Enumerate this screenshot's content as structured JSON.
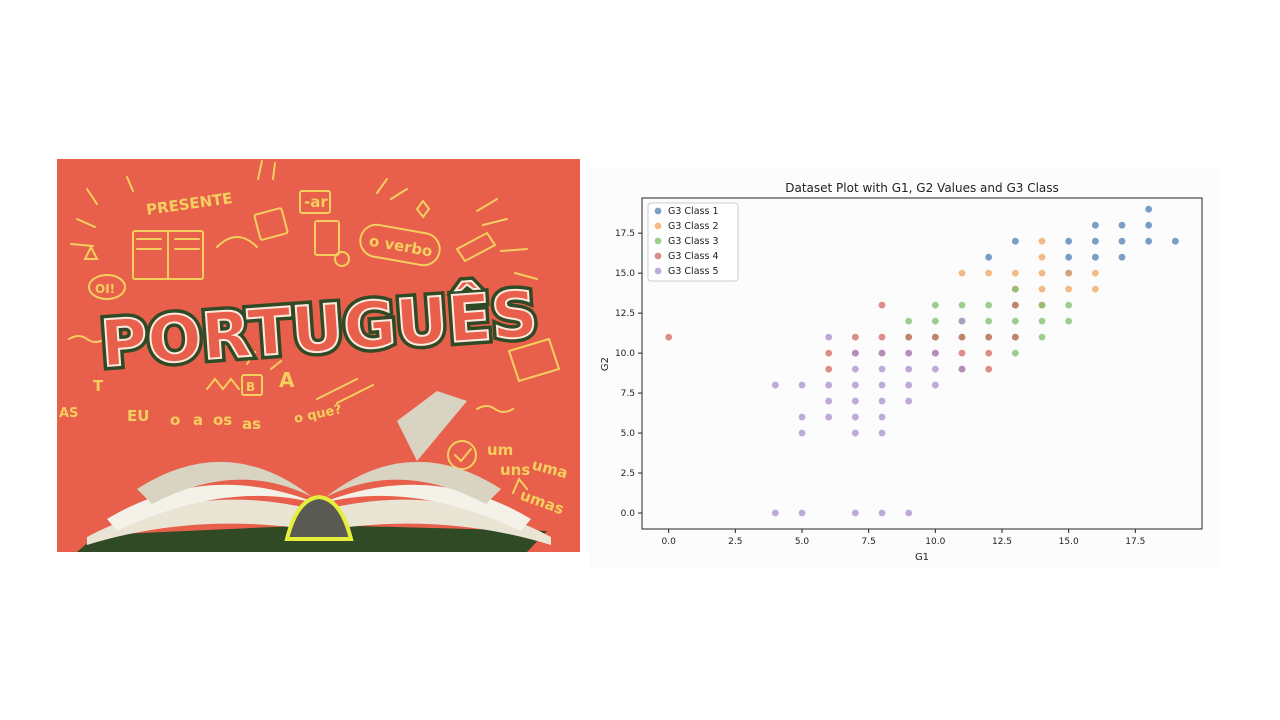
{
  "illustration": {
    "title_word": "PORTUGUÊS",
    "doodle_words": [
      "PRESENTE",
      "-ar",
      "o verbo",
      "OI!",
      "EU",
      "o",
      "a",
      "os",
      "as",
      "o que?",
      "um",
      "uns",
      "uma",
      "umas",
      "AS",
      "T",
      "B",
      "A"
    ],
    "colors": {
      "background": "#e8604c",
      "doodle": "#f4cf5e",
      "outline": "#2f4a24"
    }
  },
  "chart_data": {
    "type": "scatter",
    "title": "Dataset Plot with G1, G2 Values and G3 Class",
    "xlabel": "G1",
    "ylabel": "G2",
    "xlim": [
      -1,
      20
    ],
    "ylim": [
      -1,
      19.7
    ],
    "xticks": [
      0.0,
      2.5,
      5.0,
      7.5,
      10.0,
      12.5,
      15.0,
      17.5
    ],
    "yticks": [
      0.0,
      2.5,
      5.0,
      7.5,
      10.0,
      12.5,
      15.0,
      17.5
    ],
    "xtick_labels": [
      "0.0",
      "2.5",
      "5.0",
      "7.5",
      "10.0",
      "12.5",
      "15.0",
      "17.5"
    ],
    "ytick_labels": [
      "0.0",
      "2.5",
      "5.0",
      "7.5",
      "10.0",
      "12.5",
      "15.0",
      "17.5"
    ],
    "grid": false,
    "legend_position": "top-left",
    "series": [
      {
        "name": "G3 Class 1",
        "color": "#4f7fb1",
        "points": [
          [
            12,
            16
          ],
          [
            13,
            17
          ],
          [
            15,
            15
          ],
          [
            15,
            16
          ],
          [
            15,
            17
          ],
          [
            16,
            16
          ],
          [
            16,
            17
          ],
          [
            16,
            18
          ],
          [
            17,
            16
          ],
          [
            17,
            17
          ],
          [
            17,
            18
          ],
          [
            18,
            17
          ],
          [
            18,
            18
          ],
          [
            18,
            19
          ],
          [
            19,
            17
          ]
        ]
      },
      {
        "name": "G3 Class 2",
        "color": "#f2a35c",
        "points": [
          [
            11,
            15
          ],
          [
            12,
            15
          ],
          [
            13,
            14
          ],
          [
            13,
            15
          ],
          [
            14,
            13
          ],
          [
            14,
            14
          ],
          [
            14,
            15
          ],
          [
            14,
            16
          ],
          [
            14,
            17
          ],
          [
            15,
            14
          ],
          [
            15,
            15
          ],
          [
            16,
            14
          ],
          [
            16,
            15
          ]
        ]
      },
      {
        "name": "G3 Class 3",
        "color": "#7ebd6a",
        "points": [
          [
            9,
            11
          ],
          [
            9,
            12
          ],
          [
            10,
            11
          ],
          [
            10,
            12
          ],
          [
            10,
            13
          ],
          [
            11,
            11
          ],
          [
            11,
            12
          ],
          [
            11,
            13
          ],
          [
            12,
            11
          ],
          [
            12,
            12
          ],
          [
            12,
            13
          ],
          [
            13,
            10
          ],
          [
            13,
            11
          ],
          [
            13,
            12
          ],
          [
            13,
            13
          ],
          [
            13,
            14
          ],
          [
            14,
            11
          ],
          [
            14,
            12
          ],
          [
            14,
            13
          ],
          [
            15,
            12
          ],
          [
            15,
            13
          ]
        ]
      },
      {
        "name": "G3 Class 4",
        "color": "#cf6860",
        "points": [
          [
            0,
            11
          ],
          [
            6,
            9
          ],
          [
            6,
            10
          ],
          [
            7,
            10
          ],
          [
            7,
            11
          ],
          [
            8,
            10
          ],
          [
            8,
            11
          ],
          [
            8,
            13
          ],
          [
            9,
            10
          ],
          [
            9,
            11
          ],
          [
            10,
            10
          ],
          [
            10,
            11
          ],
          [
            11,
            9
          ],
          [
            11,
            10
          ],
          [
            11,
            11
          ],
          [
            12,
            9
          ],
          [
            12,
            10
          ],
          [
            12,
            11
          ],
          [
            13,
            11
          ],
          [
            13,
            13
          ]
        ]
      },
      {
        "name": "G3 Class 5",
        "color": "#a98fcc",
        "points": [
          [
            4,
            0
          ],
          [
            4,
            8
          ],
          [
            5,
            0
          ],
          [
            5,
            5
          ],
          [
            5,
            6
          ],
          [
            5,
            8
          ],
          [
            6,
            6
          ],
          [
            6,
            7
          ],
          [
            6,
            8
          ],
          [
            6,
            11
          ],
          [
            7,
            0
          ],
          [
            7,
            5
          ],
          [
            7,
            6
          ],
          [
            7,
            7
          ],
          [
            7,
            8
          ],
          [
            7,
            9
          ],
          [
            7,
            10
          ],
          [
            8,
            0
          ],
          [
            8,
            5
          ],
          [
            8,
            6
          ],
          [
            8,
            7
          ],
          [
            8,
            8
          ],
          [
            8,
            9
          ],
          [
            8,
            10
          ],
          [
            9,
            0
          ],
          [
            9,
            7
          ],
          [
            9,
            8
          ],
          [
            9,
            9
          ],
          [
            9,
            10
          ],
          [
            10,
            8
          ],
          [
            10,
            9
          ],
          [
            10,
            10
          ],
          [
            11,
            9
          ],
          [
            11,
            12
          ]
        ]
      }
    ]
  }
}
